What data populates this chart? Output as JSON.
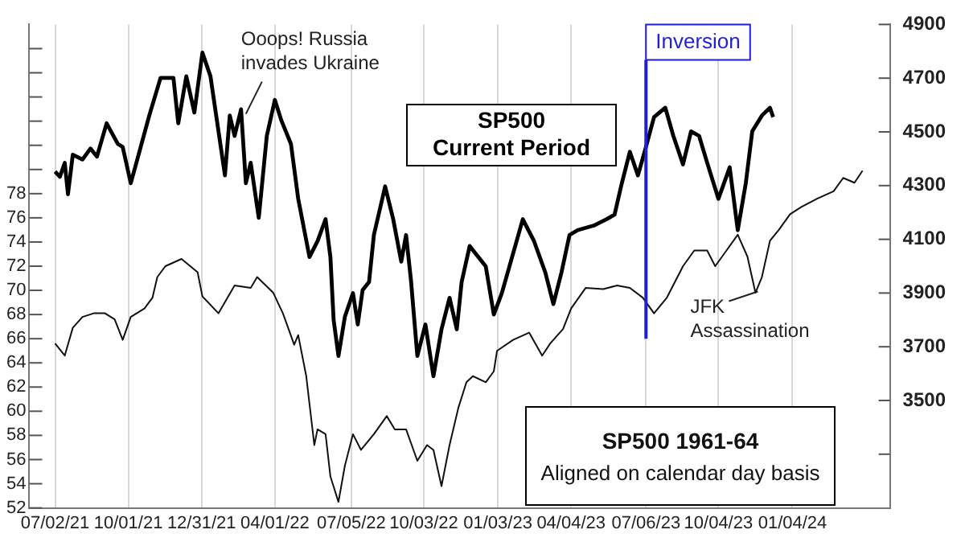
{
  "chart_data": {
    "type": "line",
    "xlim": [
      "2021-05-31",
      "2024-05-04"
    ],
    "xticks": [
      {
        "value": "2021-07-02",
        "label": "07/02/21"
      },
      {
        "value": "2021-10-01",
        "label": "10/01/21"
      },
      {
        "value": "2021-12-31",
        "label": "12/31/21"
      },
      {
        "value": "2022-04-01",
        "label": "04/01/22"
      },
      {
        "value": "2022-07-05",
        "label": "07/05/22"
      },
      {
        "value": "2022-10-03",
        "label": "10/03/22"
      },
      {
        "value": "2023-01-03",
        "label": "01/03/23"
      },
      {
        "value": "2023-04-04",
        "label": "04/04/23"
      },
      {
        "value": "2023-07-06",
        "label": "07/06/23"
      },
      {
        "value": "2023-10-04",
        "label": "10/04/23"
      },
      {
        "value": "2024-01-04",
        "label": "01/04/24"
      }
    ],
    "ylim": [
      52,
      92
    ],
    "yticks": [
      52,
      54,
      56,
      58,
      60,
      62,
      64,
      66,
      68,
      70,
      72,
      74,
      76,
      78,
      {
        "value": 80,
        "label": null
      },
      {
        "value": 82,
        "label": null
      },
      {
        "value": 84,
        "label": null
      },
      {
        "value": 86,
        "label": null
      },
      {
        "value": 88,
        "label": null
      },
      {
        "value": 90,
        "label": null
      }
    ],
    "y2lim": [
      3100,
      4900
    ],
    "y2ticks": [
      {
        "value": 3300,
        "label": null
      },
      3500,
      3700,
      3900,
      4100,
      4300,
      4500,
      4700,
      4900
    ],
    "grid": "x",
    "legend": false,
    "marker": "none",
    "line_style": "solid",
    "series": [
      {
        "name": "SP500 Current Period",
        "color": "#000000",
        "axis": "y2",
        "x": [
          "2021-07-02",
          "2021-07-08",
          "2021-07-14",
          "2021-07-18",
          "2021-07-24",
          "2021-08-05",
          "2021-08-15",
          "2021-08-23",
          "2021-09-04",
          "2021-09-18",
          "2021-09-24",
          "2021-10-04",
          "2021-10-11",
          "2021-10-27",
          "2021-11-10",
          "2021-11-26",
          "2021-12-02",
          "2021-12-12",
          "2021-12-22",
          "2022-01-01",
          "2022-01-11",
          "2022-01-29",
          "2022-02-04",
          "2022-02-10",
          "2022-02-18",
          "2022-02-24",
          "2022-03-02",
          "2022-03-12",
          "2022-03-22",
          "2022-04-01",
          "2022-04-09",
          "2022-04-21",
          "2022-04-30",
          "2022-05-14",
          "2022-05-24",
          "2022-06-03",
          "2022-06-09",
          "2022-06-13",
          "2022-06-19",
          "2022-06-27",
          "2022-07-07",
          "2022-07-13",
          "2022-07-19",
          "2022-07-27",
          "2022-08-02",
          "2022-08-16",
          "2022-08-26",
          "2022-09-05",
          "2022-09-11",
          "2022-09-17",
          "2022-09-25",
          "2022-10-05",
          "2022-10-15",
          "2022-10-25",
          "2022-11-04",
          "2022-11-13",
          "2022-11-19",
          "2022-11-29",
          "2022-12-19",
          "2022-12-29",
          "2023-01-08",
          "2023-02-03",
          "2023-02-17",
          "2023-03-03",
          "2023-03-13",
          "2023-03-23",
          "2023-04-02",
          "2023-04-12",
          "2023-05-02",
          "2023-05-18",
          "2023-05-28",
          "2023-06-06",
          "2023-06-16",
          "2023-06-26",
          "2023-07-06",
          "2023-07-16",
          "2023-07-30",
          "2023-08-09",
          "2023-08-21",
          "2023-08-31",
          "2023-09-10",
          "2023-09-20",
          "2023-10-04",
          "2023-10-18",
          "2023-10-28",
          "2023-11-07",
          "2023-11-15",
          "2023-11-27",
          "2023-12-07",
          "2023-12-11"
        ],
        "values": [
          4352,
          4333,
          4385,
          4268,
          4415,
          4397,
          4438,
          4408,
          4532,
          4455,
          4444,
          4309,
          4385,
          4561,
          4701,
          4701,
          4532,
          4707,
          4572,
          4795,
          4707,
          4338,
          4561,
          4485,
          4584,
          4309,
          4385,
          4180,
          4485,
          4619,
          4543,
          4455,
          4251,
          4034,
          4093,
          4175,
          4034,
          3800,
          3666,
          3812,
          3900,
          3783,
          3911,
          3941,
          4116,
          4297,
          4175,
          4017,
          4116,
          3950,
          3666,
          3783,
          3590,
          3765,
          3882,
          3765,
          3941,
          4075,
          3999,
          3820,
          3900,
          4175,
          4093,
          3976,
          3859,
          3976,
          4116,
          4134,
          4151,
          4175,
          4192,
          4309,
          4426,
          4338,
          4444,
          4555,
          4590,
          4485,
          4379,
          4502,
          4485,
          4385,
          4251,
          4368,
          4134,
          4309,
          4502,
          4561,
          4590,
          4555
        ]
      },
      {
        "name": "SP500 1961-64",
        "color": "#111111",
        "x": [
          "2021-07-02",
          "2021-07-14",
          "2021-07-24",
          "2021-08-05",
          "2021-08-19",
          "2021-09-02",
          "2021-09-14",
          "2021-09-24",
          "2021-10-04",
          "2021-10-21",
          "2021-10-31",
          "2021-11-06",
          "2021-11-16",
          "2021-12-06",
          "2021-12-26",
          "2022-01-01",
          "2022-01-21",
          "2022-02-10",
          "2022-03-02",
          "2022-03-10",
          "2022-03-30",
          "2022-04-11",
          "2022-04-25",
          "2022-04-30",
          "2022-05-10",
          "2022-05-20",
          "2022-05-24",
          "2022-06-03",
          "2022-06-09",
          "2022-06-19",
          "2022-06-27",
          "2022-07-07",
          "2022-07-17",
          "2022-08-02",
          "2022-08-18",
          "2022-08-28",
          "2022-09-11",
          "2022-09-25",
          "2022-10-07",
          "2022-10-15",
          "2022-10-25",
          "2022-11-04",
          "2022-11-15",
          "2022-11-25",
          "2022-12-03",
          "2022-12-19",
          "2022-12-29",
          "2023-01-02",
          "2023-01-22",
          "2023-02-11",
          "2023-02-27",
          "2023-03-09",
          "2023-03-25",
          "2023-04-04",
          "2023-04-22",
          "2023-05-14",
          "2023-05-31",
          "2023-06-16",
          "2023-07-02",
          "2023-07-16",
          "2023-08-01",
          "2023-08-11",
          "2023-08-21",
          "2023-09-04",
          "2023-09-20",
          "2023-09-30",
          "2023-10-14",
          "2023-10-28",
          "2023-11-09",
          "2023-11-19",
          "2023-11-27",
          "2023-12-07",
          "2023-12-18",
          "2024-01-01",
          "2024-01-15",
          "2024-02-04",
          "2024-02-24",
          "2024-03-07",
          "2024-03-21",
          "2024-03-31"
        ],
        "values": [
          65.6,
          64.6,
          66.9,
          67.8,
          68.1,
          68.1,
          67.6,
          65.9,
          67.8,
          68.5,
          69.4,
          71.1,
          72.0,
          72.6,
          71.5,
          69.5,
          68.1,
          70.4,
          70.2,
          71.1,
          69.8,
          68.1,
          65.5,
          66.3,
          62.9,
          57.2,
          58.5,
          58.1,
          54.6,
          52.5,
          55.5,
          58.1,
          56.8,
          58.1,
          59.6,
          58.5,
          58.5,
          55.9,
          57.2,
          56.8,
          53.8,
          57.2,
          60.3,
          62.4,
          62.9,
          62.4,
          63.3,
          65.0,
          65.9,
          66.5,
          64.6,
          65.6,
          66.8,
          68.5,
          70.2,
          70.1,
          70.4,
          70.2,
          69.4,
          68.1,
          69.4,
          70.7,
          72.0,
          73.3,
          73.3,
          72.0,
          73.3,
          74.6,
          72.8,
          69.8,
          71.1,
          74.1,
          75.0,
          76.3,
          76.9,
          77.6,
          78.2,
          79.3,
          78.9,
          79.9
        ]
      }
    ],
    "ref_lines": [
      {
        "axis": "x",
        "value": "2023-07-06",
        "label": "Inversion",
        "color": "#1f1fd6"
      }
    ],
    "annotations": [
      {
        "text": "Ooops! Russia invades Ukraine",
        "x": "2022-02-24",
        "y": 84.6
      },
      {
        "text": "JFK Assassination",
        "x": "2023-11-22",
        "y": 69.9
      },
      "Aligned on calendar day basis"
    ]
  }
}
